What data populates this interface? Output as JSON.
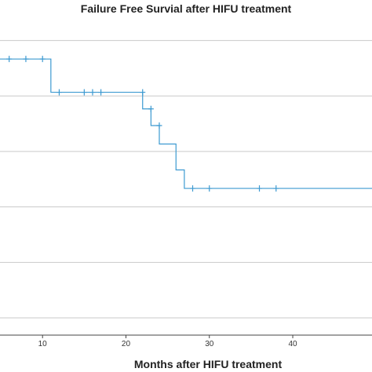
{
  "chart_data": {
    "type": "line",
    "title": "Failure Free Survial after HIFU treatment",
    "xlabel": "Months after HIFU treatment",
    "ylabel": "",
    "xlim": [
      4.9,
      49.5
    ],
    "ylim": [
      0.0,
      1.03
    ],
    "xticks": [
      10,
      20,
      30,
      40
    ],
    "gridlines_y": [
      0.0,
      0.2,
      0.4,
      0.6,
      0.8,
      1.0
    ],
    "grid": true,
    "color": "#3d9ad1",
    "series": [
      {
        "name": "",
        "steps": [
          {
            "x": 4.9,
            "y": 0.9333
          },
          {
            "x": 11.0,
            "y": 0.8133
          },
          {
            "x": 22.0,
            "y": 0.7533
          },
          {
            "x": 23.0,
            "y": 0.6933
          },
          {
            "x": 24.0,
            "y": 0.6267
          },
          {
            "x": 26.0,
            "y": 0.5333
          },
          {
            "x": 27.0,
            "y": 0.4667
          },
          {
            "x": 49.5,
            "y": 0.4667
          }
        ],
        "censored": [
          {
            "x": 6,
            "y": 0.9333
          },
          {
            "x": 8,
            "y": 0.9333
          },
          {
            "x": 10,
            "y": 0.9333
          },
          {
            "x": 12,
            "y": 0.8133
          },
          {
            "x": 15,
            "y": 0.8133
          },
          {
            "x": 16,
            "y": 0.8133
          },
          {
            "x": 17,
            "y": 0.8133
          },
          {
            "x": 22,
            "y": 0.8133
          },
          {
            "x": 23,
            "y": 0.7533
          },
          {
            "x": 24,
            "y": 0.6933
          },
          {
            "x": 28,
            "y": 0.4667
          },
          {
            "x": 30,
            "y": 0.4667
          },
          {
            "x": 36,
            "y": 0.4667
          },
          {
            "x": 38,
            "y": 0.4667
          }
        ]
      }
    ]
  }
}
